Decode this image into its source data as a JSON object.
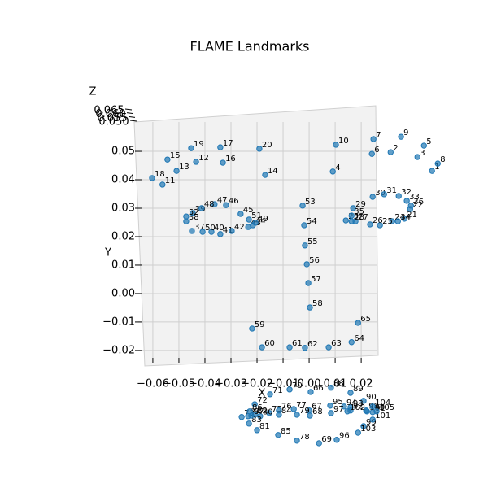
{
  "chart_data": {
    "type": "scatter3d",
    "title": "FLAME Landmarks",
    "xlabel": "X",
    "ylabel": "Y",
    "zlabel": "Z",
    "xlim": [
      -0.0656,
      0.0259
    ],
    "ylim": [
      -0.0226,
      0.0603
    ],
    "zlim": [
      0.05,
      0.065
    ],
    "xticks": [
      {
        "value": -0.06,
        "label": "−0.06"
      },
      {
        "value": -0.05,
        "label": "−0.05"
      },
      {
        "value": -0.04,
        "label": "−0.04"
      },
      {
        "value": -0.03,
        "label": "−0.03"
      },
      {
        "value": -0.02,
        "label": "−0.02"
      },
      {
        "value": -0.01,
        "label": "−0.01"
      },
      {
        "value": 0,
        "label": "0.00"
      },
      0.01,
      0.02
    ],
    "yticks": [
      {
        "value": -0.02,
        "label": "−0.02"
      },
      {
        "value": -0.01,
        "label": "−0.01"
      },
      {
        "value": 0,
        "label": "0.00"
      },
      0.01,
      0.02,
      0.03,
      0.04,
      0.05
    ],
    "zticks": [
      {
        "value": 0.05,
        "label": "0.050"
      },
      {
        "value": 0.055,
        "label": "0.055"
      },
      {
        "value": 0.06,
        "label": "0.060"
      },
      {
        "value": 0.065,
        "label": "0.065"
      }
    ],
    "grid": true,
    "color": "#1f77b4",
    "labels": [
      "1",
      "2",
      "3",
      "4",
      "5",
      "6",
      "7",
      "8",
      "9",
      "10",
      "11",
      "12",
      "13",
      "14",
      "15",
      "16",
      "17",
      "18",
      "19",
      "20",
      "21",
      "22",
      "23",
      "24",
      "25",
      "26",
      "27",
      "28",
      "29",
      "30",
      "31",
      "32",
      "33",
      "34",
      "35",
      "36",
      "37",
      "38",
      "39",
      "40",
      "41",
      "42",
      "43",
      "44",
      "45",
      "46",
      "47",
      "48",
      "49",
      "50",
      "51",
      "52",
      "53",
      "54",
      "55",
      "56",
      "57",
      "58",
      "59",
      "60",
      "61",
      "62",
      "63",
      "64",
      "65",
      "66",
      "67",
      "68",
      "69",
      "70",
      "71",
      "72",
      "73",
      "74",
      "75",
      "76",
      "77",
      "78",
      "79",
      "80",
      "81",
      "82",
      "83",
      "84",
      "85",
      "86",
      "87",
      "88",
      "89",
      "90",
      "91",
      "92",
      "93",
      "94",
      "95",
      "96",
      "97",
      "98",
      "99",
      "100",
      "101",
      "102",
      "103",
      "104",
      "105"
    ],
    "x": [
      0.0472,
      0.0313,
      0.0416,
      0.0091,
      0.0441,
      0.0241,
      0.0247,
      0.0494,
      0.0353,
      0.0103,
      -0.0563,
      -0.0434,
      -0.0509,
      -0.0169,
      -0.0544,
      -0.0331,
      -0.0341,
      -0.0603,
      -0.0453,
      -0.0191,
      0.0366,
      0.0388,
      0.0141,
      0.0319,
      0.0272,
      0.0234,
      0.0178,
      0.0163,
      0.0169,
      0.0244,
      0.0288,
      0.0344,
      0.0375,
      0.0341,
      0.0163,
      0.0391,
      -0.045,
      -0.0472,
      -0.0447,
      -0.0375,
      -0.0341,
      -0.0297,
      -0.0234,
      -0.0216,
      -0.0263,
      -0.0319,
      -0.0363,
      -0.0413,
      -0.0206,
      -0.0409,
      -0.0231,
      -0.0472,
      -0.0025,
      -0.0019,
      -0.0016,
      -0.0009,
      -0.0003,
      0.0003,
      -0.0219,
      -0.0181,
      -0.0075,
      -0.0016,
      0.0075,
      0.0163,
      0.0188,
      0.0006,
      0,
      0.0003,
      0.0038,
      -0.0075,
      -0.015,
      -0.0209,
      -0.0259,
      -0.0234,
      -0.0153,
      -0.0116,
      -0.0059,
      -0.0047,
      -0.0047,
      -0.0188,
      -0.02,
      -0.0209,
      -0.0231,
      -0.0116,
      -0.0119,
      -0.0228,
      -0.0222,
      0.0084,
      0.0159,
      0.0209,
      0.0244,
      0.0159,
      0.0159,
      0.0134,
      0.0081,
      0.0106,
      0.0084,
      0.0219,
      0.0209,
      0.0222,
      0.0244,
      0.0147,
      0.0188,
      0.0244,
      0.0259
    ],
    "y": [
      0.0431,
      0.0497,
      0.048,
      0.0429,
      0.052,
      0.0491,
      0.0543,
      0.0457,
      0.0551,
      0.0523,
      0.0383,
      0.0463,
      0.0431,
      0.0417,
      0.0471,
      0.046,
      0.0514,
      0.0406,
      0.0511,
      0.0509,
      0.0263,
      0.0297,
      0.0257,
      0.0254,
      0.024,
      0.0243,
      0.0254,
      0.0254,
      0.03,
      0.034,
      0.0349,
      0.0343,
      0.0326,
      0.0254,
      0.0274,
      0.0309,
      0.022,
      0.0254,
      0.0283,
      0.0217,
      0.0209,
      0.022,
      0.0234,
      0.024,
      0.028,
      0.0311,
      0.0314,
      0.03,
      0.0249,
      0.0217,
      0.026,
      0.0271,
      0.0309,
      0.024,
      0.0169,
      0.0103,
      0.0037,
      -0.0049,
      -0.0123,
      -0.0189,
      -0.0189,
      -0.0191,
      -0.0189,
      -0.0171,
      -0.0103,
      -0.0346,
      -0.0411,
      -0.0429,
      -0.0526,
      -0.0337,
      -0.0354,
      -0.0389,
      -0.0434,
      -0.0431,
      -0.042,
      -0.0411,
      -0.0406,
      -0.0517,
      -0.0426,
      -0.0431,
      -0.048,
      -0.0426,
      -0.0457,
      -0.0426,
      -0.0497,
      -0.0414,
      -0.0429,
      -0.0331,
      -0.0349,
      -0.0377,
      -0.0417,
      -0.0411,
      -0.04,
      -0.0397,
      -0.0394,
      -0.0514,
      -0.042,
      -0.0411,
      -0.0466,
      -0.0414,
      -0.0443,
      -0.0414,
      -0.0489,
      -0.0397,
      -0.0414
    ]
  }
}
